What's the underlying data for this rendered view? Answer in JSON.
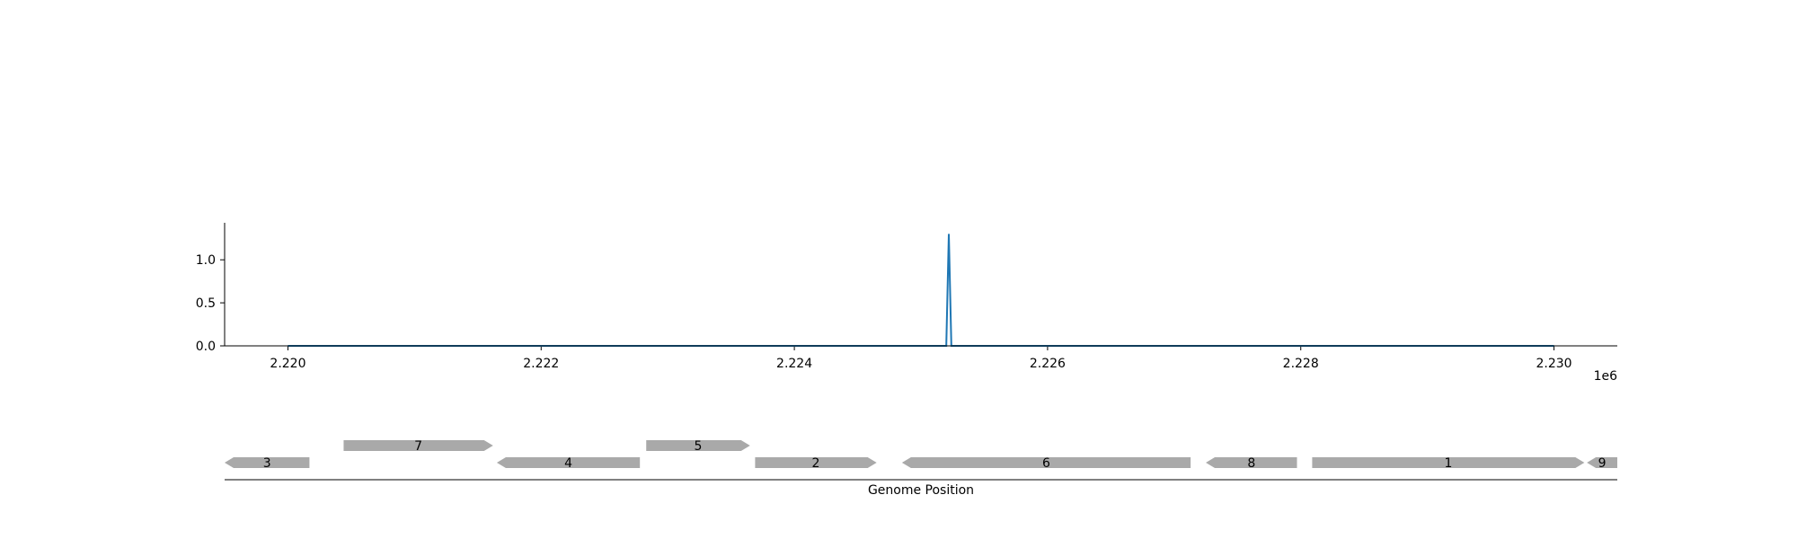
{
  "chart_data": [
    {
      "type": "line",
      "x": [
        2220000,
        2225200,
        2225220,
        2225240,
        2230000
      ],
      "series": [
        {
          "values": [
            0,
            0,
            1.3,
            0,
            0
          ],
          "color": "#1f77b4"
        }
      ],
      "xlim": [
        2219500,
        2230500
      ],
      "ylim": [
        0,
        1.43
      ],
      "x_ticks": [
        2220000,
        2222000,
        2224000,
        2226000,
        2228000,
        2230000
      ],
      "x_tick_labels": [
        "2.220",
        "2.222",
        "2.224",
        "2.226",
        "2.228",
        "2.230"
      ],
      "x_offset_label": "1e6",
      "y_ticks": [
        0,
        0.5,
        1.0
      ],
      "y_tick_labels": [
        "0.0",
        "0.5",
        "1.0"
      ],
      "grid": false
    },
    {
      "type": "gene-track",
      "xlabel": "Genome Position",
      "xlim": [
        2219500,
        2230500
      ],
      "gene_color": "#a9a9a9",
      "genes": [
        {
          "label": "3",
          "start": 2219500,
          "end": 2220170,
          "strand": "-",
          "row": 0
        },
        {
          "label": "7",
          "start": 2220440,
          "end": 2221620,
          "strand": "+",
          "row": 1
        },
        {
          "label": "4",
          "start": 2221650,
          "end": 2222780,
          "strand": "-",
          "row": 0
        },
        {
          "label": "5",
          "start": 2222830,
          "end": 2223650,
          "strand": "+",
          "row": 1
        },
        {
          "label": "2",
          "start": 2223690,
          "end": 2224650,
          "strand": "+",
          "row": 0
        },
        {
          "label": "6",
          "start": 2224850,
          "end": 2227130,
          "strand": "-",
          "row": 0
        },
        {
          "label": "8",
          "start": 2227250,
          "end": 2227970,
          "strand": "-",
          "row": 0
        },
        {
          "label": "1",
          "start": 2228090,
          "end": 2230240,
          "strand": "+",
          "row": 0
        },
        {
          "label": "9",
          "start": 2230260,
          "end": 2230500,
          "strand": "-",
          "row": 0
        }
      ]
    }
  ]
}
